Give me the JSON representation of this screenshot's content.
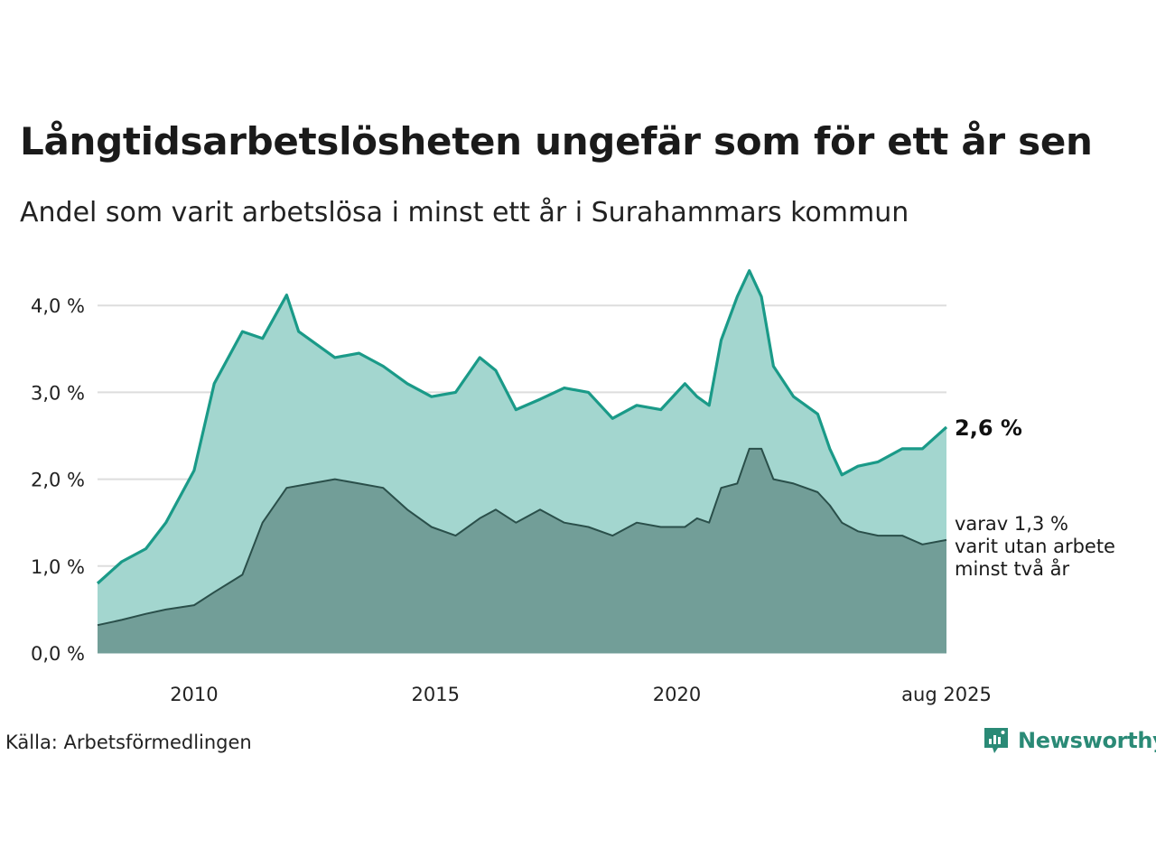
{
  "title": "Långtidsarbetslösheten ungefär som för ett år sen",
  "subtitle": "Andel som varit arbetslösa i minst ett år i Surahammars kommun",
  "source": "Källa: Arbetsförmedlingen",
  "brand": "Newsworthy",
  "colors": {
    "line_total": "#1a9a88",
    "fill_total": "#a3d6cf",
    "line_two_years": "#2a4f4a",
    "fill_two_years": "#729e98",
    "grid": "#dddddd"
  },
  "chart_data": {
    "type": "area",
    "x_ticks": [
      "2010",
      "2015",
      "2020",
      "aug 2025"
    ],
    "y_ticks": [
      "0,0 %",
      "1,0 %",
      "2,0 %",
      "3,0 %",
      "4,0 %"
    ],
    "ylim": [
      0,
      4.4
    ],
    "xlim": [
      "2008-01",
      "2025-08"
    ],
    "grid": true,
    "labels": {
      "last_total": "2,6 %",
      "last_two_years": [
        "varav 1,3 %",
        "varit utan arbete",
        "minst två år"
      ]
    },
    "series": [
      {
        "key": "total",
        "x": [
          "2008-01",
          "2008-07",
          "2009-01",
          "2009-06",
          "2010-01",
          "2010-06",
          "2011-01",
          "2011-06",
          "2011-12",
          "2012-03",
          "2012-06",
          "2012-12",
          "2013-06",
          "2013-12",
          "2014-06",
          "2014-12",
          "2015-06",
          "2015-12",
          "2016-04",
          "2016-09",
          "2017-03",
          "2017-09",
          "2018-03",
          "2018-09",
          "2019-03",
          "2019-09",
          "2020-03",
          "2020-06",
          "2020-09",
          "2020-12",
          "2021-04",
          "2021-07",
          "2021-10",
          "2022-01",
          "2022-06",
          "2022-12",
          "2023-03",
          "2023-06",
          "2023-10",
          "2024-03",
          "2024-09",
          "2025-02",
          "2025-08"
        ],
        "values": [
          0.8,
          1.05,
          1.2,
          1.5,
          2.1,
          3.1,
          3.7,
          3.62,
          4.12,
          3.7,
          3.6,
          3.4,
          3.45,
          3.3,
          3.1,
          2.95,
          3.0,
          3.4,
          3.25,
          2.8,
          2.92,
          3.05,
          3.0,
          2.7,
          2.85,
          2.8,
          3.1,
          2.95,
          2.85,
          3.6,
          4.1,
          4.4,
          4.1,
          3.3,
          2.95,
          2.75,
          2.35,
          2.05,
          2.15,
          2.2,
          2.35,
          2.35,
          2.6
        ]
      },
      {
        "key": "two_years",
        "x": [
          "2008-01",
          "2008-07",
          "2009-01",
          "2009-06",
          "2010-01",
          "2010-06",
          "2011-01",
          "2011-06",
          "2011-12",
          "2012-06",
          "2012-12",
          "2013-06",
          "2013-12",
          "2014-06",
          "2014-12",
          "2015-06",
          "2015-12",
          "2016-04",
          "2016-09",
          "2017-03",
          "2017-09",
          "2018-03",
          "2018-09",
          "2019-03",
          "2019-09",
          "2020-03",
          "2020-06",
          "2020-09",
          "2020-12",
          "2021-04",
          "2021-07",
          "2021-10",
          "2022-01",
          "2022-06",
          "2022-12",
          "2023-03",
          "2023-06",
          "2023-10",
          "2024-03",
          "2024-09",
          "2025-02",
          "2025-08"
        ],
        "values": [
          0.32,
          0.38,
          0.45,
          0.5,
          0.55,
          0.7,
          0.9,
          1.5,
          1.9,
          1.95,
          2.0,
          1.95,
          1.9,
          1.65,
          1.45,
          1.35,
          1.55,
          1.65,
          1.5,
          1.65,
          1.5,
          1.45,
          1.35,
          1.5,
          1.45,
          1.45,
          1.55,
          1.5,
          1.9,
          1.95,
          2.35,
          2.35,
          2.0,
          1.95,
          1.85,
          1.7,
          1.5,
          1.4,
          1.35,
          1.35,
          1.25,
          1.3
        ]
      }
    ]
  }
}
